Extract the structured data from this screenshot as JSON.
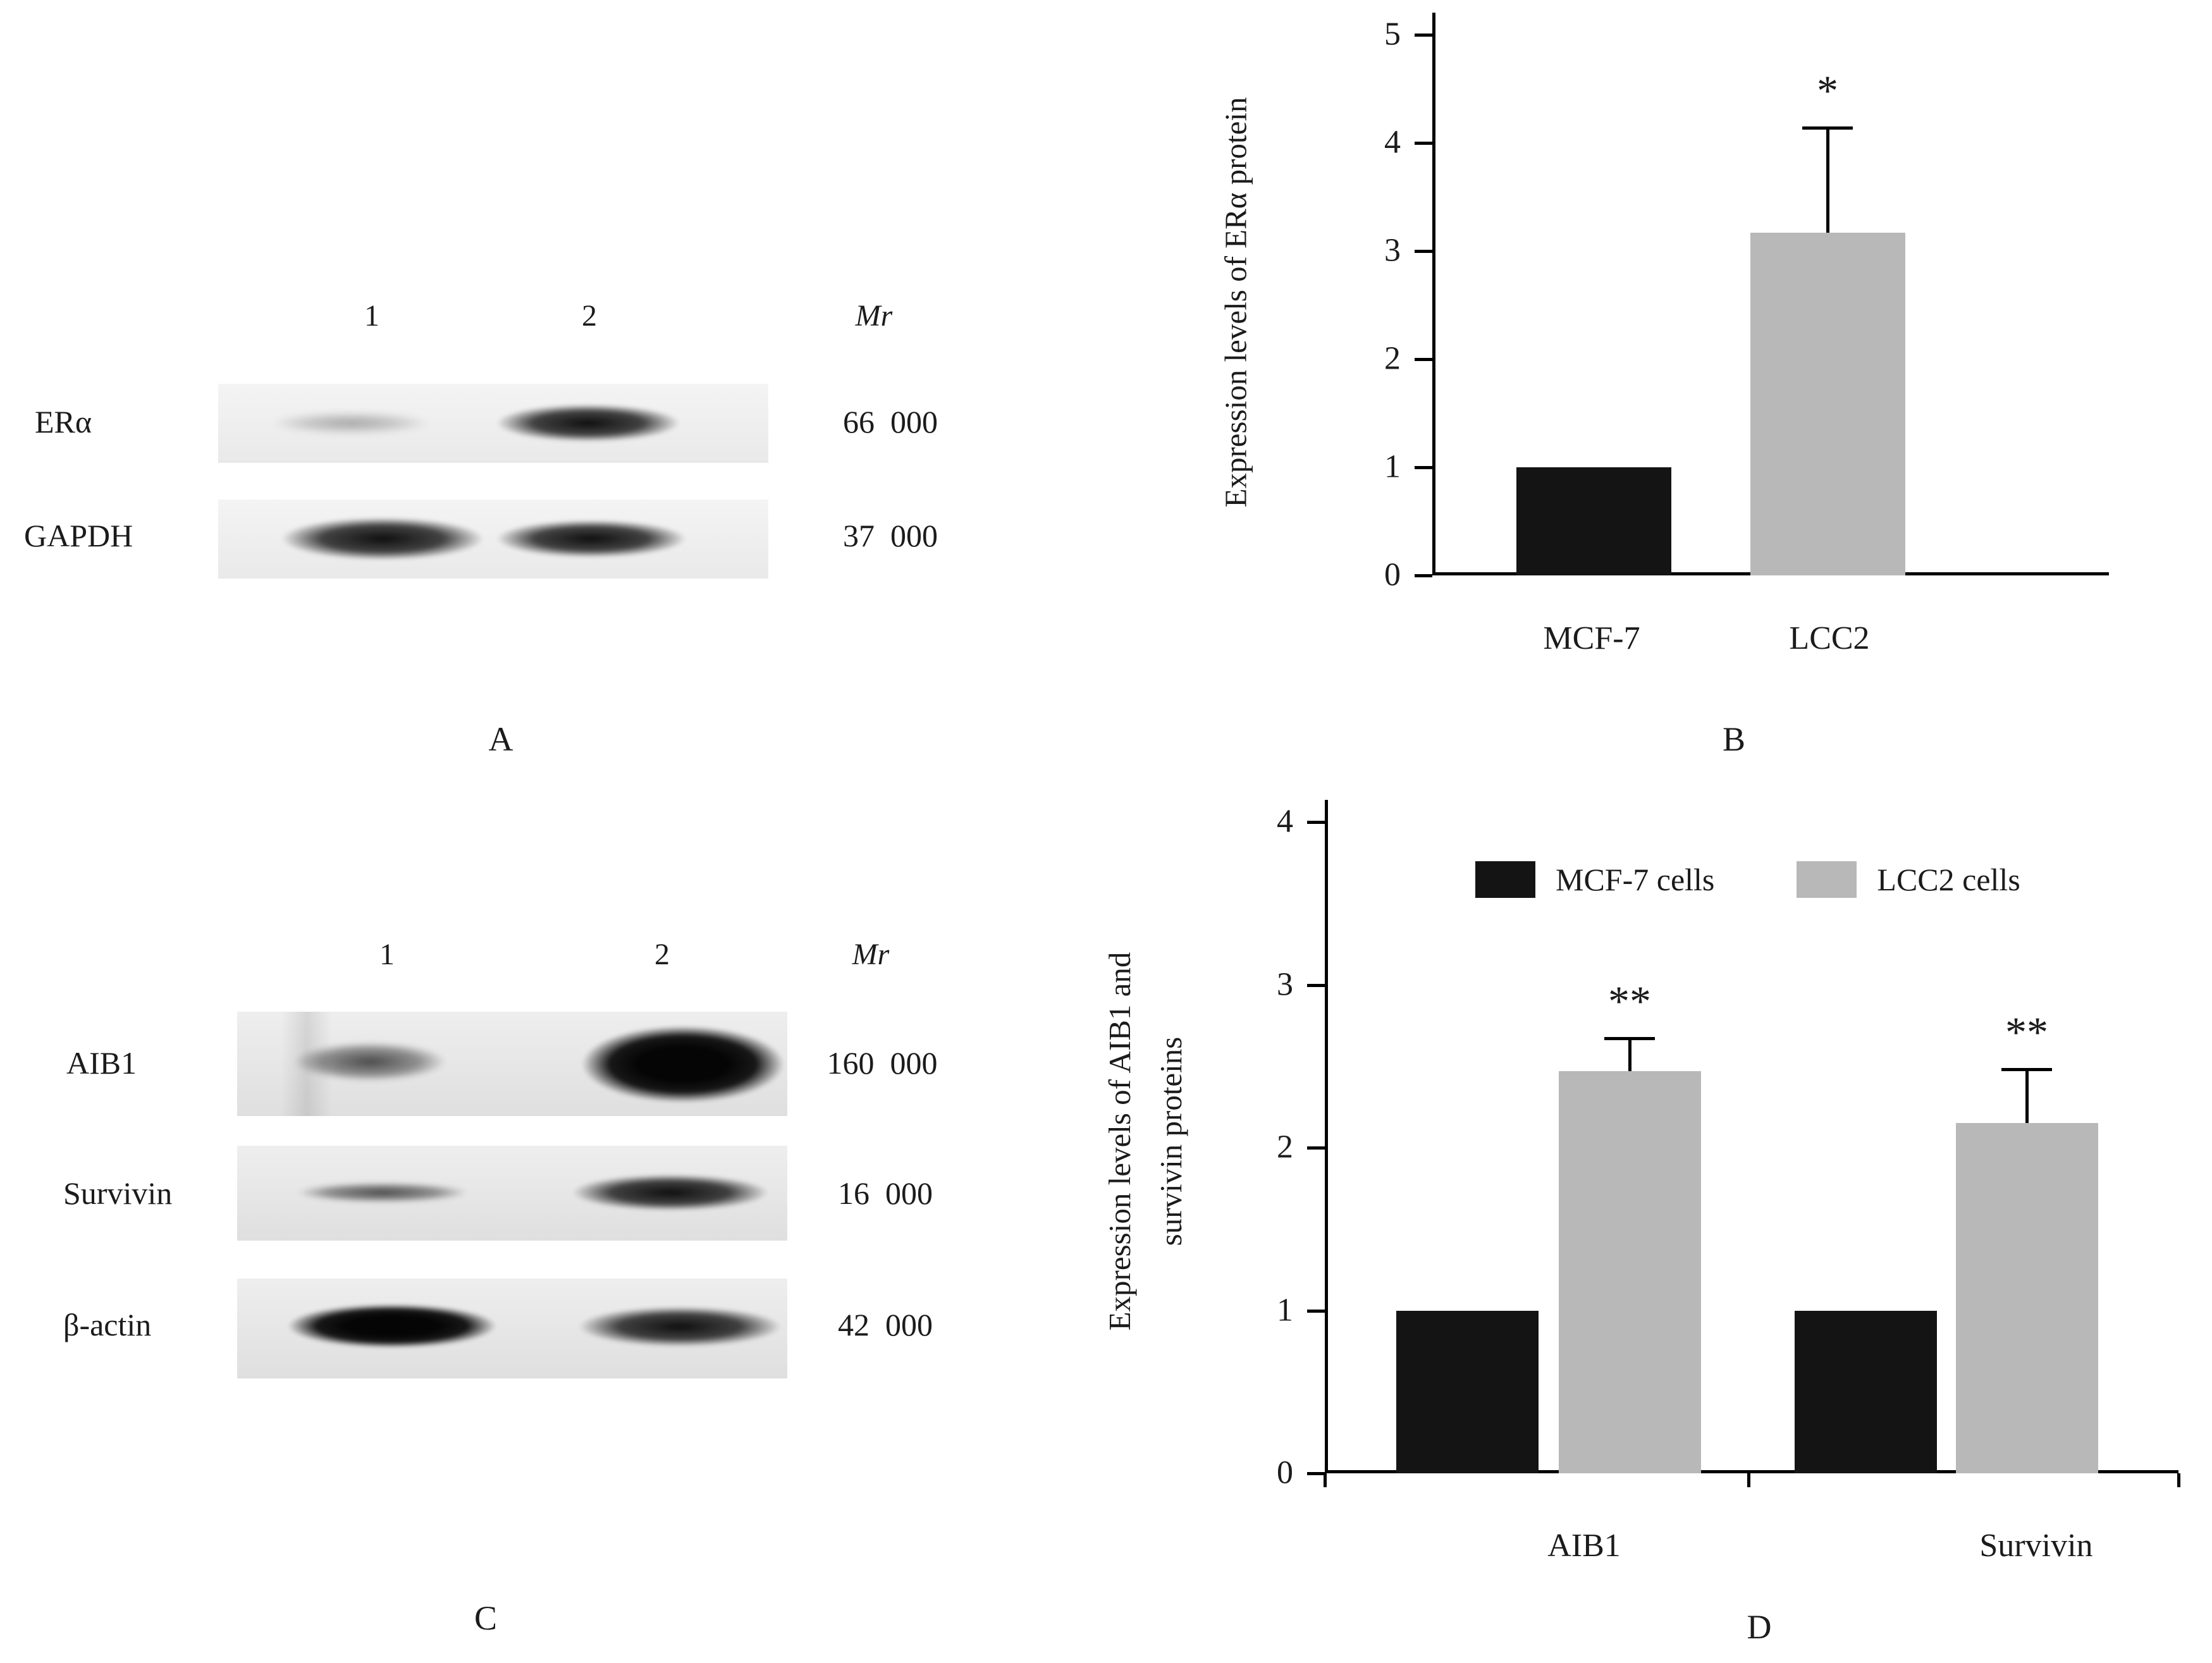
{
  "panel_a": {
    "label": "A",
    "lanes": [
      "1",
      "2"
    ],
    "mr_header": "Mr",
    "rows": [
      {
        "target": "ERα",
        "mr": "66  000",
        "bands": [
          "faint",
          "strong"
        ]
      },
      {
        "target": "GAPDH",
        "mr": "37  000",
        "bands": [
          "strong",
          "strong"
        ]
      }
    ]
  },
  "panel_b": {
    "label": "B"
  },
  "panel_c": {
    "label": "C",
    "lanes": [
      "1",
      "2"
    ],
    "mr_header": "Mr",
    "rows": [
      {
        "target": "AIB1",
        "mr": "160  000",
        "bands": [
          "medium",
          "very-strong"
        ]
      },
      {
        "target": "Survivin",
        "mr": "16  000",
        "bands": [
          "medium",
          "strong"
        ]
      },
      {
        "target": "β-actin",
        "mr": "42  000",
        "bands": [
          "very-strong",
          "strong"
        ]
      }
    ]
  },
  "panel_d": {
    "label": "D"
  },
  "chart_data": [
    {
      "type": "bar",
      "panel": "B",
      "title": "",
      "ylabel": "Expression levels of ERα protein",
      "xlabel": "",
      "categories": [
        "MCF-7",
        "LCC2"
      ],
      "values": [
        1.0,
        3.17
      ],
      "errors": [
        0,
        0.97
      ],
      "annotations": [
        "",
        "*"
      ],
      "bar_colors": [
        "#141414",
        "#b8b8b8"
      ],
      "ylim": [
        0,
        5
      ],
      "yticks": [
        0,
        1,
        2,
        3,
        4,
        5
      ],
      "grid": false,
      "legend_position": "none"
    },
    {
      "type": "bar",
      "panel": "D",
      "title": "",
      "ylabel": "Expression levels of AIB1 and\nsurvivin proteins",
      "xlabel": "",
      "categories": [
        "AIB1",
        "Survivin"
      ],
      "series": [
        {
          "name": "MCF-7 cells",
          "color": "#141414",
          "values": [
            1.0,
            1.0
          ],
          "errors": [
            0,
            0
          ],
          "annotations": [
            "",
            ""
          ]
        },
        {
          "name": "LCC2 cells",
          "color": "#b8b8b8",
          "values": [
            2.47,
            2.15
          ],
          "errors": [
            0.2,
            0.33
          ],
          "annotations": [
            "**",
            "**"
          ]
        }
      ],
      "ylim": [
        0,
        4
      ],
      "yticks": [
        0,
        1,
        2,
        3,
        4
      ],
      "grid": false,
      "legend_position": "top"
    }
  ]
}
